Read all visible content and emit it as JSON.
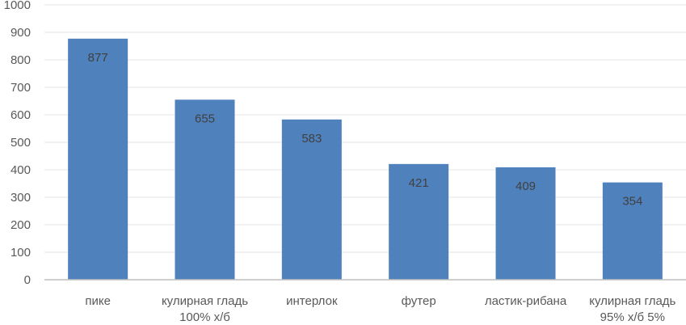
{
  "chart_data": {
    "type": "bar",
    "categories": [
      [
        "пике"
      ],
      [
        "кулирная гладь",
        "100% х/б"
      ],
      [
        "интерлок"
      ],
      [
        "футер"
      ],
      [
        "ластик-рибана"
      ],
      [
        "кулирная гладь",
        "95% х/б 5%"
      ]
    ],
    "values": [
      877,
      655,
      583,
      421,
      409,
      354
    ],
    "ylim": [
      0,
      1000
    ],
    "yticks": [
      0,
      100,
      200,
      300,
      400,
      500,
      600,
      700,
      800,
      900,
      1000
    ],
    "grid": true,
    "legend": "none",
    "bar_color": "#4f81bd"
  }
}
